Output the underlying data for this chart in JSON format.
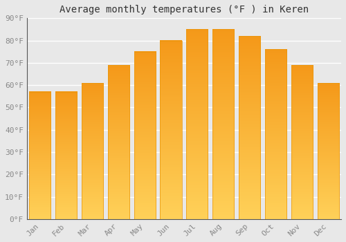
{
  "months": [
    "Jan",
    "Feb",
    "Mar",
    "Apr",
    "May",
    "Jun",
    "Jul",
    "Aug",
    "Sep",
    "Oct",
    "Nov",
    "Dec"
  ],
  "values": [
    57,
    57,
    61,
    69,
    75,
    80,
    85,
    85,
    82,
    76,
    69,
    61
  ],
  "bar_color_top": "#F5A623",
  "bar_color_bottom": "#FFD060",
  "bar_edge_color": "#E8960A",
  "title": "Average monthly temperatures (°F ) in Keren",
  "ylim": [
    0,
    90
  ],
  "yticks": [
    0,
    10,
    20,
    30,
    40,
    50,
    60,
    70,
    80,
    90
  ],
  "ytick_labels": [
    "0°F",
    "10°F",
    "20°F",
    "30°F",
    "40°F",
    "50°F",
    "60°F",
    "70°F",
    "80°F",
    "90°F"
  ],
  "background_color": "#e8e8e8",
  "grid_color": "#ffffff",
  "title_fontsize": 10,
  "tick_fontsize": 8,
  "bar_width": 0.82
}
